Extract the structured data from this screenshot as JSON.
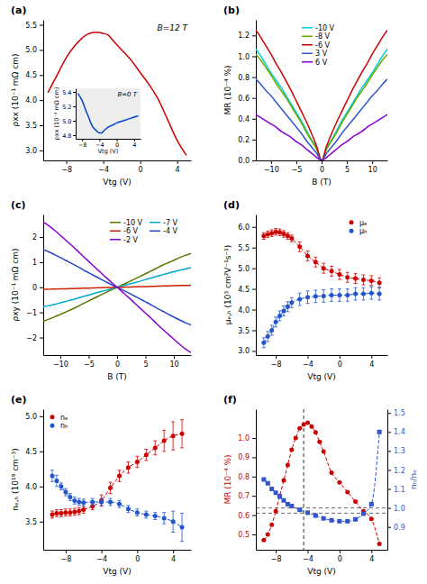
{
  "chart_data": [
    {
      "type": "line",
      "title": "(a)",
      "xlabel": "Vtg (V)",
      "ylabel": "ρxx (10⁻¹ mΩ cm)",
      "annotations": [
        "B=12 T"
      ],
      "x": [
        -10,
        -9,
        -8,
        -7,
        -6,
        -5,
        -4.5,
        -4,
        -3.5,
        -3,
        -2,
        -1,
        0,
        1,
        2,
        3,
        4,
        5
      ],
      "series": [
        {
          "color": "#cc0000",
          "line_style": "solid",
          "values": [
            4.15,
            4.5,
            4.85,
            5.1,
            5.28,
            5.35,
            5.35,
            5.33,
            5.3,
            5.2,
            5.0,
            4.8,
            4.55,
            4.3,
            4.0,
            3.6,
            3.2,
            2.9
          ]
        }
      ],
      "xlim": [
        -10.5,
        5.5
      ],
      "ylim": [
        2.8,
        5.6
      ],
      "xticks": [
        {
          "value": -8,
          "label": "−8"
        },
        {
          "value": -4,
          "label": "−4"
        },
        0,
        4
      ],
      "yticks": [
        {
          "value": 3.0,
          "label": "3.0"
        },
        3.5,
        {
          "value": 4.0,
          "label": "4.0"
        },
        4.5,
        {
          "value": 5.0,
          "label": "5.0"
        },
        5.5
      ],
      "grid": false
    },
    {
      "type": "line",
      "xlabel": "Vtg (V)",
      "ylabel": "ρxx (10⁻³ mΩ cm)",
      "annotations": [
        "B=0 T"
      ],
      "x": [
        -9,
        -8,
        -7,
        -6.5,
        -6,
        -5.5,
        -5,
        -4.5,
        -4,
        -3.5,
        -3,
        -2,
        -1,
        0,
        1,
        2,
        3,
        4,
        5
      ],
      "series": [
        {
          "color": "#0044cc",
          "line_style": "solid",
          "values": [
            5.38,
            5.28,
            5.12,
            5.05,
            4.97,
            4.91,
            4.88,
            4.85,
            4.83,
            4.83,
            4.86,
            4.91,
            4.94,
            4.97,
            4.99,
            5.01,
            5.03,
            5.05,
            5.07
          ]
        }
      ],
      "xlim": [
        -9.5,
        5.5
      ],
      "ylim": [
        4.75,
        5.45
      ],
      "xticks": [
        {
          "value": -8,
          "label": "−8"
        },
        {
          "value": -4,
          "label": "−4"
        },
        0,
        4
      ],
      "yticks": [
        4.8,
        {
          "value": 5.0,
          "label": "5.0"
        },
        5.2,
        5.4
      ],
      "grid": false
    },
    {
      "type": "line",
      "title": "(b)",
      "xlabel": "B (T)",
      "ylabel": "MR (10⁻⁴ %)",
      "x": [
        -13,
        -12,
        -11,
        -10,
        -9,
        -8,
        -7,
        -6,
        -5,
        -4,
        -3,
        -2,
        -1,
        0,
        1,
        2,
        3,
        4,
        5,
        6,
        7,
        8,
        9,
        10,
        11,
        12,
        13
      ],
      "series": [
        {
          "name": "-10 V",
          "color": "#00ccdd",
          "line_style": "solid",
          "values": [
            1.07,
            1.0,
            0.92,
            0.84,
            0.77,
            0.7,
            0.62,
            0.54,
            0.46,
            0.38,
            0.29,
            0.2,
            0.12,
            0.0,
            0.12,
            0.2,
            0.29,
            0.38,
            0.46,
            0.54,
            0.62,
            0.7,
            0.77,
            0.84,
            0.92,
            1.0,
            1.07
          ]
        },
        {
          "name": "-8 V",
          "color": "#66aa00",
          "line_style": "solid",
          "values": [
            1.02,
            0.96,
            0.89,
            0.82,
            0.74,
            0.67,
            0.6,
            0.52,
            0.44,
            0.36,
            0.27,
            0.19,
            0.11,
            0.0,
            0.11,
            0.19,
            0.27,
            0.36,
            0.44,
            0.52,
            0.6,
            0.67,
            0.74,
            0.82,
            0.89,
            0.96,
            1.02
          ]
        },
        {
          "name": "-6 V",
          "color": "#cc0000",
          "line_style": "solid",
          "values": [
            1.25,
            1.18,
            1.1,
            1.02,
            0.93,
            0.85,
            0.76,
            0.67,
            0.57,
            0.47,
            0.37,
            0.26,
            0.14,
            0.0,
            0.14,
            0.26,
            0.37,
            0.47,
            0.57,
            0.67,
            0.76,
            0.85,
            0.93,
            1.02,
            1.1,
            1.18,
            1.25
          ]
        },
        {
          "name": "3 V",
          "color": "#3355cc",
          "line_style": "solid",
          "values": [
            0.78,
            0.73,
            0.67,
            0.62,
            0.56,
            0.5,
            0.44,
            0.38,
            0.32,
            0.26,
            0.19,
            0.13,
            0.07,
            0.0,
            0.07,
            0.13,
            0.19,
            0.26,
            0.32,
            0.38,
            0.44,
            0.5,
            0.56,
            0.62,
            0.67,
            0.73,
            0.78
          ]
        },
        {
          "name": "6 V",
          "color": "#8800cc",
          "line_style": "solid",
          "values": [
            0.44,
            0.41,
            0.38,
            0.35,
            0.32,
            0.28,
            0.25,
            0.22,
            0.18,
            0.15,
            0.11,
            0.07,
            0.03,
            0.0,
            0.03,
            0.07,
            0.11,
            0.15,
            0.18,
            0.22,
            0.25,
            0.28,
            0.32,
            0.35,
            0.38,
            0.41,
            0.44
          ]
        }
      ],
      "xlim": [
        -13,
        13
      ],
      "ylim": [
        0,
        1.35
      ],
      "xticks": [
        {
          "value": -10,
          "label": "−10"
        },
        {
          "value": -5,
          "label": "−5"
        },
        0,
        5,
        10
      ],
      "yticks": [
        {
          "value": 0.0,
          "label": "0.0"
        },
        0.2,
        0.4,
        0.6,
        0.8,
        {
          "value": 1.0,
          "label": "1.0"
        },
        1.2
      ],
      "legend": "top",
      "grid": false
    },
    {
      "type": "line",
      "title": "(c)",
      "xlabel": "B (T)",
      "ylabel": "ρxy (10⁻¹ mΩ cm)",
      "x": [
        -13,
        -12,
        -11,
        -10,
        -9,
        -8,
        -7,
        -6,
        -5,
        -4,
        -3,
        -2,
        -1,
        0,
        1,
        2,
        3,
        4,
        5,
        6,
        7,
        8,
        9,
        10,
        11,
        12,
        13
      ],
      "series": [
        {
          "name": "-10 V",
          "color": "#557700",
          "line_style": "solid",
          "values": [
            -1.35,
            -1.27,
            -1.18,
            -1.08,
            -0.98,
            -0.88,
            -0.77,
            -0.65,
            -0.54,
            -0.43,
            -0.32,
            -0.21,
            -0.1,
            0,
            0.1,
            0.21,
            0.32,
            0.43,
            0.54,
            0.65,
            0.77,
            0.88,
            0.98,
            1.08,
            1.18,
            1.27,
            1.35
          ]
        },
        {
          "name": "-7 V",
          "color": "#00aacc",
          "line_style": "solid",
          "values": [
            -0.78,
            -0.73,
            -0.68,
            -0.62,
            -0.56,
            -0.5,
            -0.44,
            -0.37,
            -0.31,
            -0.24,
            -0.18,
            -0.12,
            -0.06,
            0,
            0.06,
            0.12,
            0.18,
            0.24,
            0.31,
            0.37,
            0.44,
            0.5,
            0.56,
            0.62,
            0.68,
            0.73,
            0.78
          ]
        },
        {
          "name": "-6 V",
          "color": "#cc2200",
          "line_style": "solid",
          "values": [
            -0.08,
            -0.075,
            -0.07,
            -0.065,
            -0.058,
            -0.052,
            -0.045,
            -0.038,
            -0.031,
            -0.024,
            -0.017,
            -0.011,
            -0.005,
            0,
            0.005,
            0.011,
            0.017,
            0.024,
            0.031,
            0.038,
            0.045,
            0.052,
            0.058,
            0.065,
            0.07,
            0.075,
            0.08
          ]
        },
        {
          "name": "-4 V",
          "color": "#2244cc",
          "line_style": "solid",
          "values": [
            1.5,
            1.41,
            1.3,
            1.19,
            1.07,
            0.95,
            0.83,
            0.7,
            0.58,
            0.46,
            0.34,
            0.22,
            0.11,
            0,
            -0.11,
            -0.22,
            -0.34,
            -0.46,
            -0.58,
            -0.7,
            -0.83,
            -0.95,
            -1.07,
            -1.19,
            -1.3,
            -1.41,
            -1.5
          ]
        },
        {
          "name": "-2 V",
          "color": "#8800cc",
          "line_style": "solid",
          "values": [
            2.6,
            2.45,
            2.27,
            2.07,
            1.87,
            1.67,
            1.46,
            1.24,
            1.03,
            0.82,
            0.61,
            0.4,
            0.2,
            0,
            -0.2,
            -0.4,
            -0.61,
            -0.82,
            -1.03,
            -1.24,
            -1.46,
            -1.67,
            -1.87,
            -2.07,
            -2.27,
            -2.45,
            -2.6
          ]
        }
      ],
      "xlim": [
        -13,
        13
      ],
      "ylim": [
        -2.7,
        2.9
      ],
      "xticks": [
        {
          "value": -10,
          "label": "−10"
        },
        {
          "value": -5,
          "label": "−5"
        },
        0,
        5,
        10
      ],
      "yticks": [
        {
          "value": -2,
          "label": "−2"
        },
        {
          "value": -1,
          "label": "−1"
        },
        0,
        1,
        2
      ],
      "legend": "top-right",
      "grid": false
    },
    {
      "type": "line",
      "title": "(d)",
      "xlabel": "Vtg (V)",
      "ylabel": "μₑ,ₕ (10³ cm²V⁻¹s⁻¹)",
      "x": [
        -9.5,
        -9,
        -8.5,
        -8,
        -7.5,
        -7,
        -6.5,
        -6,
        -5,
        -4,
        -3,
        -2,
        -1,
        0,
        1,
        2,
        3,
        4,
        5
      ],
      "series": [
        {
          "name": "μₑ",
          "color": "#cc0000",
          "marker": "circle",
          "line_style": "dashed",
          "values": [
            5.78,
            5.82,
            5.85,
            5.88,
            5.87,
            5.83,
            5.78,
            5.72,
            5.52,
            5.3,
            5.15,
            5.0,
            4.93,
            4.85,
            4.78,
            4.75,
            4.72,
            4.7,
            4.65
          ],
          "errors": [
            0.08,
            0.08,
            0.08,
            0.08,
            0.08,
            0.08,
            0.08,
            0.08,
            0.12,
            0.12,
            0.12,
            0.12,
            0.12,
            0.12,
            0.12,
            0.12,
            0.12,
            0.12,
            0.12
          ]
        },
        {
          "name": "μₕ",
          "color": "#2255cc",
          "marker": "circle",
          "line_style": "dashed",
          "values": [
            3.2,
            3.35,
            3.5,
            3.7,
            3.85,
            3.97,
            4.07,
            4.17,
            4.25,
            4.3,
            4.32,
            4.33,
            4.35,
            4.35,
            4.35,
            4.38,
            4.38,
            4.4,
            4.38
          ],
          "errors": [
            0.12,
            0.12,
            0.12,
            0.12,
            0.12,
            0.12,
            0.12,
            0.12,
            0.15,
            0.15,
            0.15,
            0.15,
            0.15,
            0.15,
            0.15,
            0.15,
            0.15,
            0.15,
            0.15
          ]
        }
      ],
      "xlim": [
        -10.5,
        6
      ],
      "ylim": [
        2.9,
        6.3
      ],
      "xticks": [
        {
          "value": -8,
          "label": "−8"
        },
        {
          "value": -4,
          "label": "−4"
        },
        0,
        4
      ],
      "yticks": [
        {
          "value": 3.0,
          "label": "3.0"
        },
        3.5,
        {
          "value": 4.0,
          "label": "4.0"
        },
        4.5,
        {
          "value": 5.0,
          "label": "5.0"
        },
        5.5,
        {
          "value": 6.0,
          "label": "6.0"
        }
      ],
      "legend": "top-right",
      "grid": false
    },
    {
      "type": "line",
      "title": "(e)",
      "xlabel": "Vtg (V)",
      "ylabel": "nₑ,ₕ (10¹⁹ cm⁻³)",
      "x": [
        -9.5,
        -9,
        -8.5,
        -8,
        -7.5,
        -7,
        -6.5,
        -6,
        -5,
        -4,
        -3,
        -2,
        -1,
        0,
        1,
        2,
        3,
        4,
        5
      ],
      "series": [
        {
          "name": "nₑ",
          "color": "#cc0000",
          "marker": "circle",
          "line_style": "dashed",
          "values": [
            3.6,
            3.62,
            3.62,
            3.63,
            3.63,
            3.64,
            3.65,
            3.67,
            3.72,
            3.8,
            3.98,
            4.15,
            4.27,
            4.35,
            4.45,
            4.55,
            4.65,
            4.72,
            4.75
          ],
          "errors": [
            0.05,
            0.05,
            0.05,
            0.05,
            0.05,
            0.05,
            0.05,
            0.05,
            0.05,
            0.08,
            0.08,
            0.08,
            0.08,
            0.08,
            0.08,
            0.1,
            0.15,
            0.2,
            0.2
          ]
        },
        {
          "name": "nₕ",
          "color": "#2255cc",
          "marker": "circle",
          "line_style": "dashed",
          "values": [
            4.15,
            4.08,
            4.0,
            3.92,
            3.85,
            3.8,
            3.78,
            3.77,
            3.78,
            3.78,
            3.78,
            3.75,
            3.68,
            3.63,
            3.6,
            3.58,
            3.55,
            3.5,
            3.42
          ],
          "errors": [
            0.08,
            0.08,
            0.05,
            0.05,
            0.05,
            0.05,
            0.05,
            0.05,
            0.05,
            0.05,
            0.05,
            0.05,
            0.05,
            0.05,
            0.05,
            0.05,
            0.08,
            0.15,
            0.2
          ]
        }
      ],
      "xlim": [
        -10.5,
        6
      ],
      "ylim": [
        3.1,
        5.1
      ],
      "xticks": [
        {
          "value": -8,
          "label": "−8"
        },
        {
          "value": -4,
          "label": "−4"
        },
        0,
        4
      ],
      "yticks": [
        3.5,
        {
          "value": 4.0,
          "label": "4.0"
        },
        4.5,
        {
          "value": 5.0,
          "label": "5.0"
        }
      ],
      "legend": "top-left",
      "grid": false
    },
    {
      "type": "line",
      "title": "(f)",
      "xlabel": "Vtg (V)",
      "ylabel": "MR (10⁻⁴ %)",
      "y2label": "nₕ/nₑ",
      "series": [
        {
          "color": "#cc0000",
          "marker": "circle",
          "line_style": "dashed",
          "x": [
            -9.5,
            -9,
            -8.5,
            -8,
            -7.5,
            -7,
            -6.5,
            -6,
            -5.5,
            -5,
            -4.5,
            -4,
            -3.5,
            -3,
            -2.5,
            -2,
            -1,
            0,
            1,
            2,
            3,
            4,
            5
          ],
          "values": [
            0.47,
            0.5,
            0.55,
            0.62,
            0.7,
            0.78,
            0.86,
            0.94,
            1.0,
            1.05,
            1.07,
            1.08,
            1.06,
            1.03,
            0.98,
            0.93,
            0.82,
            0.77,
            0.72,
            0.67,
            0.62,
            0.58,
            0.45
          ]
        },
        {
          "color": "#3355cc",
          "marker": "square",
          "line_style": "dashed",
          "axis": "y2",
          "x": [
            -9.5,
            -9,
            -8.5,
            -8,
            -7.5,
            -7,
            -6.5,
            -6,
            -5,
            -4,
            -3,
            -2,
            -1,
            0,
            1,
            2,
            3,
            4,
            5
          ],
          "values": [
            1.15,
            1.13,
            1.1,
            1.08,
            1.06,
            1.04,
            1.02,
            1.01,
            0.99,
            0.975,
            0.96,
            0.945,
            0.935,
            0.93,
            0.93,
            0.94,
            0.97,
            1.02,
            1.4
          ]
        }
      ],
      "vlines": [
        -4.5
      ],
      "hlines": [
        0.61
      ],
      "y2hlines": [
        1.0
      ],
      "xlim": [
        -10.5,
        6
      ],
      "ylim": [
        0.42,
        1.15
      ],
      "y2lim": [
        0.78,
        1.52
      ],
      "xticks": [
        {
          "value": -8,
          "label": "−8"
        },
        {
          "value": -4,
          "label": "−4"
        },
        0,
        4
      ],
      "yticks": [
        0.5,
        0.6,
        0.7,
        0.8,
        0.9,
        {
          "value": 1.0,
          "label": "1.0"
        }
      ],
      "y2ticks": [
        0.9,
        {
          "value": 1.0,
          "label": "1.0"
        },
        1.1,
        1.2,
        1.3,
        1.4,
        1.5
      ],
      "grid": false
    }
  ]
}
